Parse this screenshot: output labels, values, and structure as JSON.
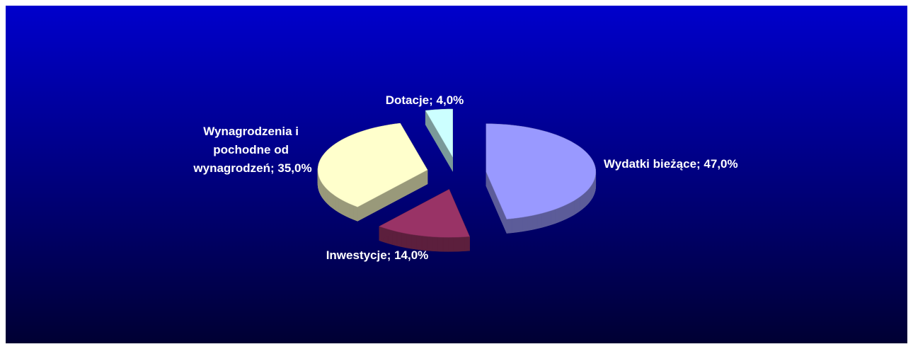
{
  "chart_data": {
    "type": "pie",
    "values": [
      47,
      14,
      35,
      4
    ],
    "value_labels": [
      "Wydatki bieżące; 47,0%",
      "Inwestycje; 14,0%",
      "Wynagrodzenia i pochodne od wynagrodzeń; 35,0%",
      "Dotacje; 4,0%"
    ],
    "colors": [
      "#9999ff",
      "#993366",
      "#ffffcc",
      "#ccffff"
    ],
    "exploded": true,
    "three_d": true
  }
}
